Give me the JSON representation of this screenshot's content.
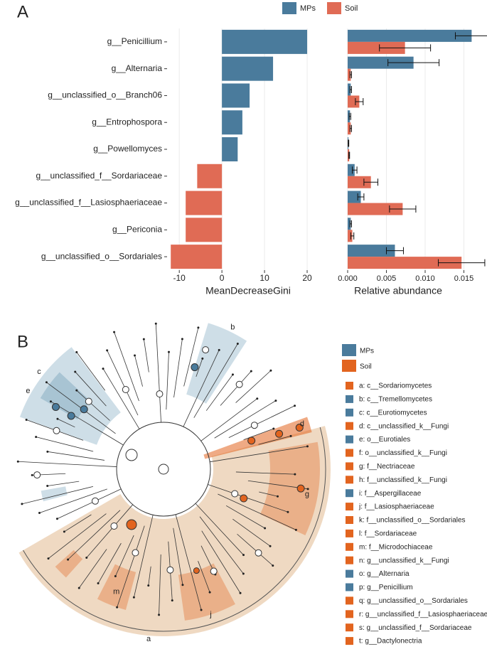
{
  "panel_a": {
    "label": "A"
  },
  "panel_b": {
    "label": "B"
  },
  "chart_data": [
    {
      "type": "hbar",
      "xlabel": "MeanDecreaseGini",
      "categories": [
        "g__Penicillium",
        "g__Alternaria",
        "g__unclassified_o__Branch06",
        "g__Entrophospora",
        "g__Powellomyces",
        "g__unclassified_f__Sordariaceae",
        "g__unclassified_f__Lasiosphaeriaceae",
        "g__Periconia",
        "g__unclassified_o__Sordariales"
      ],
      "values": [
        20,
        12,
        6.5,
        4.8,
        3.7,
        -5.8,
        -8.5,
        -8.5,
        -12
      ],
      "colors": [
        "#4a7b9c",
        "#4a7b9c",
        "#4a7b9c",
        "#4a7b9c",
        "#4a7b9c",
        "#e06b55",
        "#e06b55",
        "#e06b55",
        "#e06b55"
      ],
      "xlim": [
        -12.7,
        25
      ],
      "xticks": [
        -10,
        0,
        10,
        20
      ],
      "grid": true
    },
    {
      "type": "grouped_hbar",
      "xlabel": "Relative abundance",
      "series": [
        {
          "name": "MPs",
          "color": "#4a7b9c",
          "values": [
            0.016,
            0.0085,
            0.0004,
            0.0003,
            0.0001,
            0.0009,
            0.0017,
            0.0004,
            0.0061
          ],
          "errors": [
            0.0021,
            0.0033,
            0.0001,
            0.0001,
            5e-05,
            0.0003,
            0.0004,
            0.0001,
            0.0011
          ]
        },
        {
          "name": "Soil",
          "color": "#e06b55",
          "values": [
            0.0074,
            0.0004,
            0.0015,
            0.0004,
            0.0002,
            0.003,
            0.0071,
            0.0006,
            0.0147
          ],
          "errors": [
            0.0033,
            0.0001,
            0.0005,
            0.0001,
            5e-05,
            0.0009,
            0.0017,
            0.0002,
            0.003
          ]
        }
      ],
      "xlim": [
        0,
        0.0178
      ],
      "xticks": [
        {
          "value": 0,
          "label": "0.000"
        },
        {
          "value": 0.005,
          "label": "0.005"
        },
        {
          "value": 0.01,
          "label": "0.010"
        },
        {
          "value": 0.015,
          "label": "0.015"
        }
      ],
      "grid": true,
      "legend": "top"
    }
  ],
  "cladogram": {
    "legend": [
      {
        "name": "MPs",
        "color": "#4a7b9c"
      },
      {
        "name": "Soil",
        "color": "#e2641f"
      }
    ],
    "clades": [
      {
        "label": "a: c__Sordariomycetes",
        "color": "#e2641f"
      },
      {
        "label": "b: c__Tremellomycetes",
        "color": "#4a7b9c"
      },
      {
        "label": "c: c__Eurotiomycetes",
        "color": "#4a7b9c"
      },
      {
        "label": "d: c__unclassified_k__Fungi",
        "color": "#e2641f"
      },
      {
        "label": "e: o__Eurotiales",
        "color": "#4a7b9c"
      },
      {
        "label": "f: o__unclassified_k__Fungi",
        "color": "#e2641f"
      },
      {
        "label": "g: f__Nectriaceae",
        "color": "#e2641f"
      },
      {
        "label": "h: f__unclassified_k__Fungi",
        "color": "#e2641f"
      },
      {
        "label": "i: f__Aspergillaceae",
        "color": "#4a7b9c"
      },
      {
        "label": "j: f__Lasiosphaeriaceae",
        "color": "#e2641f"
      },
      {
        "label": "k: f__unclassified_o__Sordariales",
        "color": "#e2641f"
      },
      {
        "label": "l: f__Sordariaceae",
        "color": "#e2641f"
      },
      {
        "label": "m: f__Microdochiaceae",
        "color": "#e2641f"
      },
      {
        "label": "n: g__unclassified_k__Fungi",
        "color": "#e2641f"
      },
      {
        "label": "o: g__Alternaria",
        "color": "#4a7b9c"
      },
      {
        "label": "p: g__Penicillium",
        "color": "#4a7b9c"
      },
      {
        "label": "q: g__unclassified_o__Sordariales",
        "color": "#e2641f"
      },
      {
        "label": "r: g__unclassified_f__Lasiosphaeriaceae",
        "color": "#e2641f"
      },
      {
        "label": "s: g__unclassified_f__Sordariaceae",
        "color": "#e2641f"
      },
      {
        "label": "t: g__Dactylonectria",
        "color": "#e2641f"
      }
    ],
    "tree_letters": [
      "a",
      "b",
      "c",
      "e",
      "g",
      "j",
      "m",
      "d"
    ]
  }
}
